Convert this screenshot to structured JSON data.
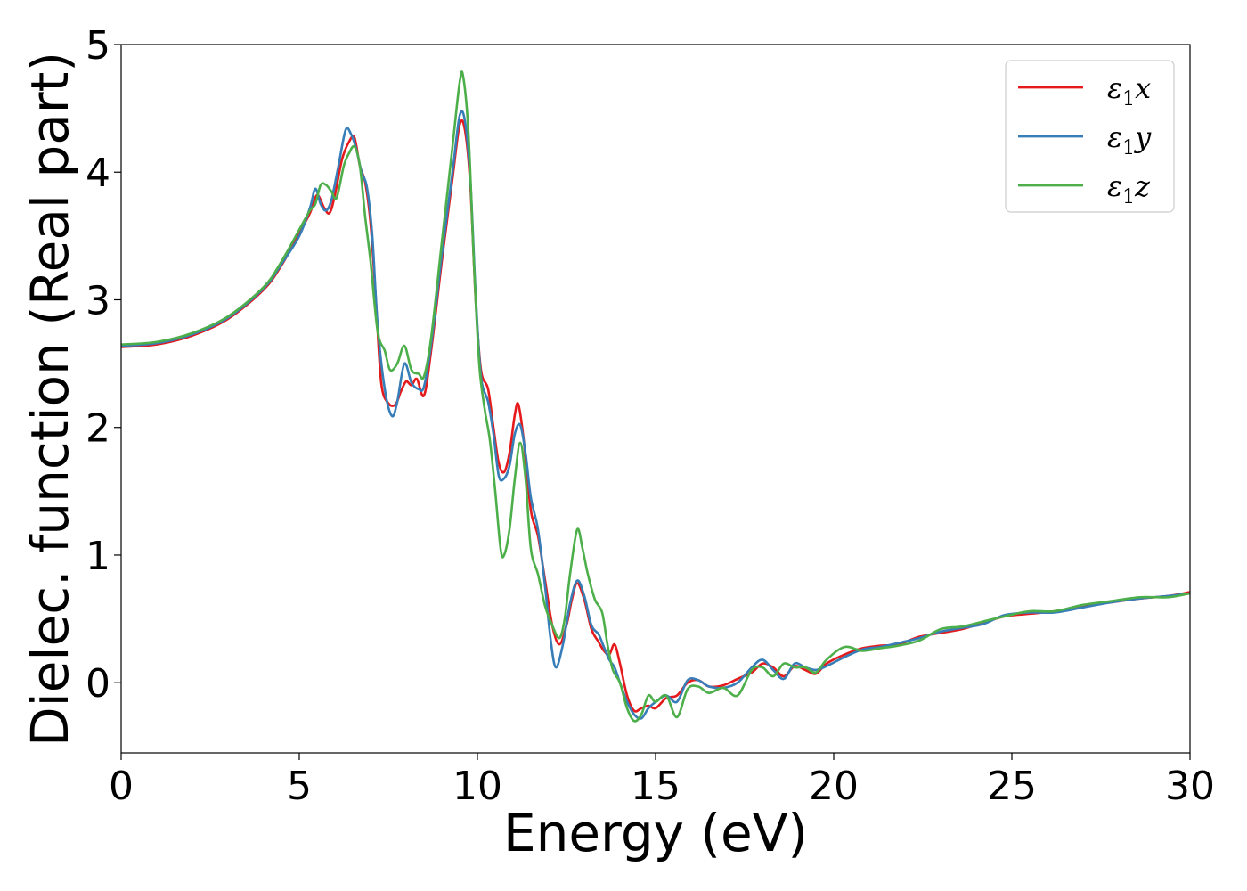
{
  "chart_data": {
    "type": "line",
    "xlabel": "Energy (eV)",
    "ylabel": "Dielec. function (Real part)",
    "xlim": [
      0,
      30
    ],
    "ylim": [
      -0.55,
      5.0
    ],
    "xticks": [
      0,
      5,
      10,
      15,
      20,
      25,
      30
    ],
    "yticks": [
      0,
      1,
      2,
      3,
      4,
      5
    ],
    "grid": false,
    "legend_position": "top-right",
    "series": [
      {
        "name": "ε1x",
        "legend_base": "ε",
        "legend_sub": "1",
        "legend_var": "x",
        "color": "#e41a1c",
        "points": [
          [
            0,
            2.63
          ],
          [
            1,
            2.65
          ],
          [
            2,
            2.72
          ],
          [
            3,
            2.85
          ],
          [
            4,
            3.08
          ],
          [
            4.5,
            3.27
          ],
          [
            5,
            3.52
          ],
          [
            5.3,
            3.68
          ],
          [
            5.5,
            3.82
          ],
          [
            5.7,
            3.72
          ],
          [
            5.85,
            3.68
          ],
          [
            6.0,
            3.82
          ],
          [
            6.2,
            4.1
          ],
          [
            6.4,
            4.24
          ],
          [
            6.55,
            4.27
          ],
          [
            6.7,
            4.05
          ],
          [
            6.85,
            3.92
          ],
          [
            7.0,
            3.6
          ],
          [
            7.15,
            3.0
          ],
          [
            7.3,
            2.35
          ],
          [
            7.5,
            2.19
          ],
          [
            7.7,
            2.18
          ],
          [
            7.85,
            2.28
          ],
          [
            8.0,
            2.36
          ],
          [
            8.15,
            2.33
          ],
          [
            8.3,
            2.38
          ],
          [
            8.5,
            2.25
          ],
          [
            8.7,
            2.6
          ],
          [
            9.0,
            3.3
          ],
          [
            9.3,
            3.95
          ],
          [
            9.5,
            4.37
          ],
          [
            9.65,
            4.33
          ],
          [
            9.8,
            3.9
          ],
          [
            9.95,
            3.0
          ],
          [
            10.1,
            2.45
          ],
          [
            10.3,
            2.3
          ],
          [
            10.45,
            2.0
          ],
          [
            10.6,
            1.72
          ],
          [
            10.75,
            1.65
          ],
          [
            10.9,
            1.8
          ],
          [
            11.05,
            2.1
          ],
          [
            11.15,
            2.18
          ],
          [
            11.3,
            1.9
          ],
          [
            11.5,
            1.35
          ],
          [
            11.7,
            1.15
          ],
          [
            11.9,
            0.8
          ],
          [
            12.1,
            0.45
          ],
          [
            12.3,
            0.3
          ],
          [
            12.5,
            0.45
          ],
          [
            12.65,
            0.65
          ],
          [
            12.8,
            0.78
          ],
          [
            13.0,
            0.65
          ],
          [
            13.2,
            0.42
          ],
          [
            13.4,
            0.32
          ],
          [
            13.55,
            0.25
          ],
          [
            13.7,
            0.22
          ],
          [
            13.85,
            0.3
          ],
          [
            14.0,
            0.15
          ],
          [
            14.2,
            -0.1
          ],
          [
            14.4,
            -0.22
          ],
          [
            14.6,
            -0.2
          ],
          [
            14.8,
            -0.18
          ],
          [
            15.0,
            -0.2
          ],
          [
            15.3,
            -0.12
          ],
          [
            15.6,
            -0.1
          ],
          [
            15.9,
            0.0
          ],
          [
            16.2,
            0.02
          ],
          [
            16.5,
            -0.03
          ],
          [
            16.9,
            -0.02
          ],
          [
            17.3,
            0.03
          ],
          [
            17.7,
            0.08
          ],
          [
            18.0,
            0.15
          ],
          [
            18.3,
            0.12
          ],
          [
            18.6,
            0.05
          ],
          [
            18.9,
            0.13
          ],
          [
            19.2,
            0.1
          ],
          [
            19.5,
            0.07
          ],
          [
            19.8,
            0.15
          ],
          [
            20.3,
            0.22
          ],
          [
            20.8,
            0.27
          ],
          [
            21.3,
            0.29
          ],
          [
            21.8,
            0.3
          ],
          [
            22.4,
            0.36
          ],
          [
            23.0,
            0.39
          ],
          [
            23.6,
            0.42
          ],
          [
            24.2,
            0.47
          ],
          [
            24.8,
            0.52
          ],
          [
            25.5,
            0.54
          ],
          [
            26.2,
            0.56
          ],
          [
            27.0,
            0.6
          ],
          [
            27.8,
            0.63
          ],
          [
            28.6,
            0.66
          ],
          [
            29.4,
            0.68
          ],
          [
            30,
            0.71
          ]
        ]
      },
      {
        "name": "ε1y",
        "legend_base": "ε",
        "legend_sub": "1",
        "legend_var": "y",
        "color": "#377eb8",
        "points": [
          [
            0,
            2.64
          ],
          [
            1,
            2.66
          ],
          [
            2,
            2.73
          ],
          [
            3,
            2.86
          ],
          [
            4,
            3.09
          ],
          [
            4.5,
            3.28
          ],
          [
            5,
            3.5
          ],
          [
            5.3,
            3.72
          ],
          [
            5.45,
            3.87
          ],
          [
            5.6,
            3.75
          ],
          [
            5.75,
            3.7
          ],
          [
            5.9,
            3.78
          ],
          [
            6.1,
            4.05
          ],
          [
            6.3,
            4.33
          ],
          [
            6.45,
            4.3
          ],
          [
            6.6,
            4.18
          ],
          [
            6.75,
            4.0
          ],
          [
            6.9,
            3.88
          ],
          [
            7.05,
            3.5
          ],
          [
            7.2,
            2.8
          ],
          [
            7.4,
            2.3
          ],
          [
            7.6,
            2.09
          ],
          [
            7.75,
            2.2
          ],
          [
            7.95,
            2.5
          ],
          [
            8.15,
            2.35
          ],
          [
            8.35,
            2.3
          ],
          [
            8.5,
            2.32
          ],
          [
            8.7,
            2.65
          ],
          [
            9.0,
            3.35
          ],
          [
            9.3,
            4.0
          ],
          [
            9.5,
            4.44
          ],
          [
            9.65,
            4.4
          ],
          [
            9.8,
            3.95
          ],
          [
            9.95,
            3.05
          ],
          [
            10.1,
            2.4
          ],
          [
            10.3,
            2.2
          ],
          [
            10.45,
            1.95
          ],
          [
            10.6,
            1.62
          ],
          [
            10.75,
            1.6
          ],
          [
            10.9,
            1.7
          ],
          [
            11.05,
            1.95
          ],
          [
            11.2,
            2.02
          ],
          [
            11.35,
            1.8
          ],
          [
            11.5,
            1.45
          ],
          [
            11.7,
            1.2
          ],
          [
            11.9,
            0.75
          ],
          [
            12.05,
            0.35
          ],
          [
            12.2,
            0.12
          ],
          [
            12.4,
            0.3
          ],
          [
            12.6,
            0.62
          ],
          [
            12.8,
            0.8
          ],
          [
            13.0,
            0.68
          ],
          [
            13.2,
            0.45
          ],
          [
            13.4,
            0.38
          ],
          [
            13.55,
            0.28
          ],
          [
            13.7,
            0.18
          ],
          [
            13.85,
            0.12
          ],
          [
            14.0,
            0.0
          ],
          [
            14.2,
            -0.15
          ],
          [
            14.4,
            -0.25
          ],
          [
            14.6,
            -0.28
          ],
          [
            14.8,
            -0.2
          ],
          [
            15.0,
            -0.15
          ],
          [
            15.3,
            -0.1
          ],
          [
            15.6,
            -0.15
          ],
          [
            15.9,
            0.02
          ],
          [
            16.2,
            0.02
          ],
          [
            16.5,
            -0.03
          ],
          [
            16.9,
            -0.04
          ],
          [
            17.3,
            0.0
          ],
          [
            17.7,
            0.12
          ],
          [
            18.0,
            0.18
          ],
          [
            18.3,
            0.1
          ],
          [
            18.6,
            0.03
          ],
          [
            18.9,
            0.15
          ],
          [
            19.2,
            0.12
          ],
          [
            19.5,
            0.1
          ],
          [
            19.8,
            0.13
          ],
          [
            20.3,
            0.2
          ],
          [
            20.8,
            0.26
          ],
          [
            21.3,
            0.28
          ],
          [
            21.8,
            0.31
          ],
          [
            22.4,
            0.35
          ],
          [
            23.0,
            0.4
          ],
          [
            23.6,
            0.43
          ],
          [
            24.2,
            0.46
          ],
          [
            24.8,
            0.53
          ],
          [
            25.5,
            0.55
          ],
          [
            26.2,
            0.55
          ],
          [
            27.0,
            0.59
          ],
          [
            27.8,
            0.63
          ],
          [
            28.6,
            0.66
          ],
          [
            29.4,
            0.68
          ],
          [
            30,
            0.7
          ]
        ]
      },
      {
        "name": "ε1z",
        "legend_base": "ε",
        "legend_sub": "1",
        "legend_var": "z",
        "color": "#4daf4a",
        "points": [
          [
            0,
            2.65
          ],
          [
            1,
            2.67
          ],
          [
            2,
            2.74
          ],
          [
            3,
            2.87
          ],
          [
            4,
            3.1
          ],
          [
            4.5,
            3.3
          ],
          [
            5,
            3.55
          ],
          [
            5.3,
            3.7
          ],
          [
            5.45,
            3.75
          ],
          [
            5.6,
            3.9
          ],
          [
            5.75,
            3.9
          ],
          [
            5.9,
            3.85
          ],
          [
            6.05,
            3.8
          ],
          [
            6.25,
            4.05
          ],
          [
            6.4,
            4.15
          ],
          [
            6.55,
            4.2
          ],
          [
            6.7,
            4.05
          ],
          [
            6.85,
            3.65
          ],
          [
            7.0,
            3.3
          ],
          [
            7.2,
            2.75
          ],
          [
            7.4,
            2.6
          ],
          [
            7.55,
            2.45
          ],
          [
            7.75,
            2.5
          ],
          [
            7.95,
            2.64
          ],
          [
            8.15,
            2.45
          ],
          [
            8.35,
            2.42
          ],
          [
            8.5,
            2.4
          ],
          [
            8.7,
            2.7
          ],
          [
            9.0,
            3.45
          ],
          [
            9.3,
            4.2
          ],
          [
            9.5,
            4.7
          ],
          [
            9.6,
            4.75
          ],
          [
            9.75,
            4.3
          ],
          [
            9.9,
            3.3
          ],
          [
            10.05,
            2.5
          ],
          [
            10.2,
            2.15
          ],
          [
            10.35,
            1.9
          ],
          [
            10.5,
            1.5
          ],
          [
            10.65,
            1.05
          ],
          [
            10.75,
            1.0
          ],
          [
            10.9,
            1.2
          ],
          [
            11.05,
            1.6
          ],
          [
            11.2,
            1.88
          ],
          [
            11.35,
            1.6
          ],
          [
            11.5,
            1.05
          ],
          [
            11.7,
            0.85
          ],
          [
            11.9,
            0.6
          ],
          [
            12.1,
            0.45
          ],
          [
            12.3,
            0.35
          ],
          [
            12.45,
            0.5
          ],
          [
            12.6,
            0.85
          ],
          [
            12.8,
            1.2
          ],
          [
            12.95,
            1.05
          ],
          [
            13.1,
            0.85
          ],
          [
            13.3,
            0.65
          ],
          [
            13.5,
            0.55
          ],
          [
            13.65,
            0.3
          ],
          [
            13.8,
            0.1
          ],
          [
            14.0,
            0.0
          ],
          [
            14.2,
            -0.2
          ],
          [
            14.4,
            -0.3
          ],
          [
            14.6,
            -0.25
          ],
          [
            14.8,
            -0.1
          ],
          [
            15.0,
            -0.15
          ],
          [
            15.3,
            -0.1
          ],
          [
            15.6,
            -0.27
          ],
          [
            15.9,
            -0.05
          ],
          [
            16.2,
            -0.03
          ],
          [
            16.5,
            -0.08
          ],
          [
            16.9,
            -0.04
          ],
          [
            17.3,
            -0.1
          ],
          [
            17.7,
            0.1
          ],
          [
            18.0,
            0.12
          ],
          [
            18.3,
            0.05
          ],
          [
            18.6,
            0.15
          ],
          [
            18.9,
            0.12
          ],
          [
            19.2,
            0.12
          ],
          [
            19.5,
            0.08
          ],
          [
            19.8,
            0.18
          ],
          [
            20.3,
            0.28
          ],
          [
            20.8,
            0.25
          ],
          [
            21.3,
            0.27
          ],
          [
            21.8,
            0.29
          ],
          [
            22.4,
            0.33
          ],
          [
            23.0,
            0.42
          ],
          [
            23.6,
            0.44
          ],
          [
            24.2,
            0.48
          ],
          [
            24.8,
            0.52
          ],
          [
            25.5,
            0.56
          ],
          [
            26.2,
            0.56
          ],
          [
            27.0,
            0.61
          ],
          [
            27.8,
            0.64
          ],
          [
            28.6,
            0.67
          ],
          [
            29.4,
            0.67
          ],
          [
            30,
            0.7
          ]
        ]
      }
    ]
  }
}
